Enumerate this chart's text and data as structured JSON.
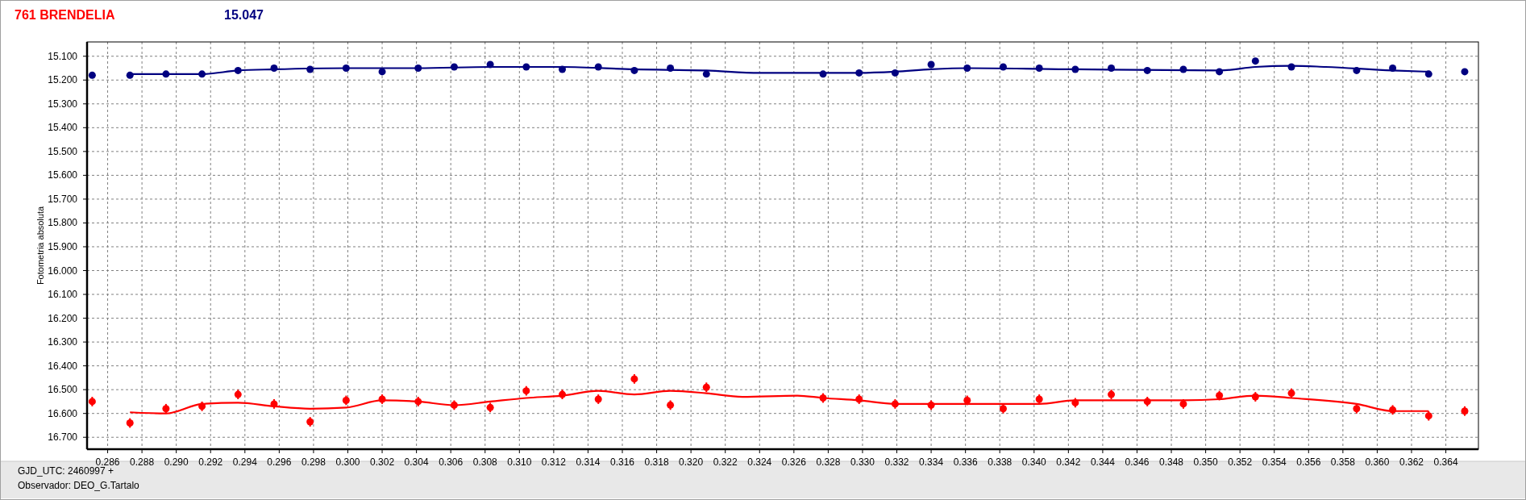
{
  "chart_data": {
    "type": "scatter",
    "ylabel": "Fotometria absoluta",
    "annotations": [
      "GJD_UTC: 2460997 +",
      "Observador: DEO_G.Tartalo"
    ],
    "xlim": [
      0.2848,
      0.3659
    ],
    "ylim": [
      16.75,
      15.04
    ],
    "xticks": [
      0.286,
      0.288,
      {
        "value": 0.29,
        "label": "0.290"
      },
      0.292,
      0.294,
      0.296,
      0.298,
      {
        "value": 0.3,
        "label": "0.300"
      },
      0.302,
      0.304,
      0.306,
      0.308,
      {
        "value": 0.31,
        "label": "0.310"
      },
      0.312,
      0.314,
      0.316,
      0.318,
      {
        "value": 0.32,
        "label": "0.320"
      },
      0.322,
      0.324,
      0.326,
      0.328,
      {
        "value": 0.33,
        "label": "0.330"
      },
      0.332,
      0.334,
      0.336,
      0.338,
      {
        "value": 0.34,
        "label": "0.340"
      },
      0.342,
      0.344,
      0.346,
      0.348,
      {
        "value": 0.35,
        "label": "0.350"
      },
      0.352,
      0.354,
      0.356,
      0.358,
      {
        "value": 0.36,
        "label": "0.360"
      },
      0.362,
      0.364
    ],
    "yticks": [
      {
        "value": 15.1,
        "label": "15.100"
      },
      {
        "value": 15.2,
        "label": "15.200"
      },
      {
        "value": 15.3,
        "label": "15.300"
      },
      {
        "value": 15.4,
        "label": "15.400"
      },
      {
        "value": 15.5,
        "label": "15.500"
      },
      {
        "value": 15.6,
        "label": "15.600"
      },
      {
        "value": 15.7,
        "label": "15.700"
      },
      {
        "value": 15.8,
        "label": "15.800"
      },
      {
        "value": 15.9,
        "label": "15.900"
      },
      {
        "value": 16.0,
        "label": "16.000"
      },
      {
        "value": 16.1,
        "label": "16.100"
      },
      {
        "value": 16.2,
        "label": "16.200"
      },
      {
        "value": 16.3,
        "label": "16.300"
      },
      {
        "value": 16.4,
        "label": "16.400"
      },
      {
        "value": 16.5,
        "label": "16.500"
      },
      {
        "value": 16.6,
        "label": "16.600"
      },
      {
        "value": 16.7,
        "label": "16.700"
      }
    ],
    "grid": true,
    "legend": "top left",
    "marker": "circle",
    "series": [
      {
        "name": "761 BRENDELIA",
        "color": "#ff0000",
        "x": [
          0.2851,
          0.2873,
          0.2894,
          0.2915,
          0.2936,
          0.2957,
          0.2978,
          0.2999,
          0.302,
          0.3041,
          0.3062,
          0.3083,
          0.3104,
          0.3125,
          0.3146,
          0.3167,
          0.3188,
          0.3209,
          0.3277,
          0.3298,
          0.3319,
          0.334,
          0.3361,
          0.3382,
          0.3403,
          0.3424,
          0.3445,
          0.3466,
          0.3487,
          0.3508,
          0.3529,
          0.355,
          0.3588,
          0.3609,
          0.363,
          0.3651
        ],
        "values": [
          16.55,
          16.64,
          16.58,
          16.57,
          16.52,
          16.56,
          16.635,
          16.545,
          16.54,
          16.55,
          16.565,
          16.575,
          16.505,
          16.52,
          16.54,
          16.455,
          16.565,
          16.49,
          16.535,
          16.54,
          16.56,
          16.565,
          16.545,
          16.58,
          16.54,
          16.555,
          16.52,
          16.55,
          16.56,
          16.525,
          16.53,
          16.515,
          16.58,
          16.585,
          16.61,
          16.59
        ],
        "errors": [
          0.02,
          0.02,
          0.02,
          0.02,
          0.02,
          0.02,
          0.02,
          0.02,
          0.02,
          0.02,
          0.02,
          0.02,
          0.02,
          0.02,
          0.02,
          0.02,
          0.02,
          0.02,
          0.02,
          0.02,
          0.02,
          0.02,
          0.02,
          0.02,
          0.02,
          0.02,
          0.02,
          0.02,
          0.02,
          0.02,
          0.02,
          0.02,
          0.02,
          0.02,
          0.02,
          0.02
        ]
      },
      {
        "name": "15.047",
        "color": "#000080",
        "x": [
          0.2851,
          0.2873,
          0.2894,
          0.2915,
          0.2936,
          0.2957,
          0.2978,
          0.2999,
          0.302,
          0.3041,
          0.3062,
          0.3083,
          0.3104,
          0.3125,
          0.3146,
          0.3167,
          0.3188,
          0.3209,
          0.3277,
          0.3298,
          0.3319,
          0.334,
          0.3361,
          0.3382,
          0.3403,
          0.3424,
          0.3445,
          0.3466,
          0.3487,
          0.3508,
          0.3529,
          0.355,
          0.3588,
          0.3609,
          0.363,
          0.3651
        ],
        "values": [
          15.18,
          15.18,
          15.175,
          15.175,
          15.16,
          15.15,
          15.155,
          15.15,
          15.165,
          15.15,
          15.145,
          15.135,
          15.145,
          15.155,
          15.145,
          15.16,
          15.15,
          15.175,
          15.175,
          15.17,
          15.17,
          15.135,
          15.15,
          15.145,
          15.15,
          15.155,
          15.15,
          15.16,
          15.155,
          15.165,
          15.12,
          15.145,
          15.16,
          15.15,
          15.175,
          15.165
        ]
      },
      {
        "type": "line",
        "color": "#ff0000",
        "marker": "none",
        "x": [
          0.2873,
          0.2894,
          0.2915,
          0.2936,
          0.2957,
          0.2978,
          0.2999,
          0.302,
          0.3041,
          0.3062,
          0.3083,
          0.3104,
          0.3125,
          0.3146,
          0.3167,
          0.3188,
          0.3209,
          0.323,
          0.3262,
          0.3277,
          0.3298,
          0.3319,
          0.334,
          0.3382,
          0.3403,
          0.3424,
          0.3487,
          0.3508,
          0.3529,
          0.355,
          0.3588,
          0.3609,
          0.363
        ],
        "values": [
          16.595,
          16.6,
          16.56,
          16.555,
          16.57,
          16.58,
          16.575,
          16.545,
          16.55,
          16.565,
          16.55,
          16.535,
          16.525,
          16.505,
          16.52,
          16.505,
          16.515,
          16.53,
          16.525,
          16.535,
          16.545,
          16.56,
          16.56,
          16.56,
          16.56,
          16.545,
          16.545,
          16.54,
          16.525,
          16.535,
          16.56,
          16.59,
          16.59
        ]
      },
      {
        "type": "line",
        "color": "#000080",
        "marker": "none",
        "x": [
          0.2873,
          0.2915,
          0.2936,
          0.2957,
          0.3,
          0.3041,
          0.3083,
          0.3125,
          0.3167,
          0.3209,
          0.324,
          0.3298,
          0.3319,
          0.334,
          0.3361,
          0.3424,
          0.3508,
          0.3529,
          0.355,
          0.357,
          0.3609,
          0.363
        ],
        "values": [
          15.175,
          15.175,
          15.16,
          15.155,
          15.15,
          15.15,
          15.145,
          15.145,
          15.155,
          15.16,
          15.17,
          15.17,
          15.165,
          15.155,
          15.15,
          15.155,
          15.16,
          15.145,
          15.14,
          15.145,
          15.16,
          15.165
        ]
      }
    ]
  }
}
